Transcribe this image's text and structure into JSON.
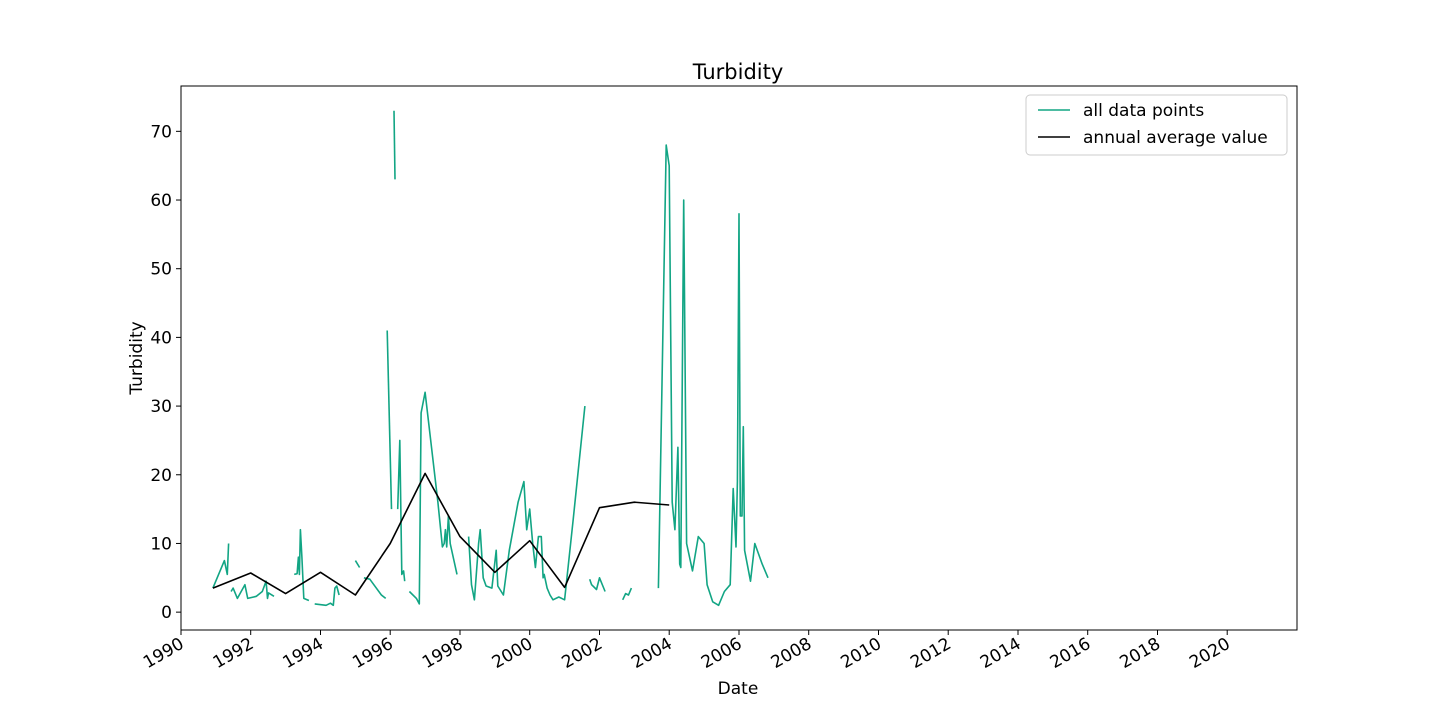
{
  "chart_data": {
    "type": "line",
    "title": "Turbidity",
    "xlabel": "Date",
    "ylabel": "Turbidity",
    "xlim": [
      "1990-01-01",
      "2022-01-01"
    ],
    "ylim": [
      -2.6,
      76.6
    ],
    "x_ticks": [
      "1990",
      "1992",
      "1994",
      "1996",
      "1998",
      "2000",
      "2002",
      "2004",
      "2006",
      "2008",
      "2010",
      "2012",
      "2014",
      "2016",
      "2018",
      "2020"
    ],
    "y_ticks": [
      0,
      10,
      20,
      30,
      40,
      50,
      60,
      70
    ],
    "grid": false,
    "legend_position": "top-right",
    "colors": {
      "all_data_points": "#12a584",
      "annual_average_value": "#000000"
    },
    "series": [
      {
        "name": "all data points",
        "segments": [
          [
            [
              "1990-12-01",
              3.5
            ],
            [
              "1991-04-01",
              7.5
            ],
            [
              "1991-05-01",
              5.5
            ],
            [
              "1991-05-15",
              10.0
            ]
          ],
          [
            [
              "1991-06-10",
              3.0
            ],
            [
              "1991-07-01",
              3.5
            ],
            [
              "1991-08-15",
              2.0
            ],
            [
              "1991-11-01",
              4.0
            ],
            [
              "1991-12-01",
              2.0
            ],
            [
              "1992-03-01",
              2.3
            ],
            [
              "1992-05-01",
              3.0
            ],
            [
              "1992-06-10",
              4.5
            ],
            [
              "1992-06-25",
              2.0
            ],
            [
              "1992-07-05",
              2.8
            ],
            [
              "1992-09-01",
              2.3
            ]
          ],
          [
            [
              "1993-04-01",
              5.5
            ],
            [
              "1993-05-01",
              5.6
            ],
            [
              "1993-05-15",
              8.0
            ],
            [
              "1993-05-25",
              5.5
            ],
            [
              "1993-06-05",
              12.0
            ],
            [
              "1993-06-20",
              8.0
            ],
            [
              "1993-07-10",
              2.0
            ],
            [
              "1993-09-01",
              1.7
            ]
          ],
          [
            [
              "1993-11-01",
              1.2
            ],
            [
              "1994-03-01",
              1.0
            ],
            [
              "1994-04-15",
              1.3
            ],
            [
              "1994-05-15",
              1.0
            ],
            [
              "1994-06-01",
              3.5
            ],
            [
              "1994-06-20",
              3.8
            ],
            [
              "1994-07-15",
              2.5
            ]
          ],
          [
            [
              "1995-01-01",
              7.5
            ],
            [
              "1995-02-15",
              6.5
            ]
          ],
          [
            [
              "1995-04-01",
              5.0
            ],
            [
              "1995-06-01",
              4.8
            ],
            [
              "1995-10-01",
              2.5
            ],
            [
              "1995-11-15",
              2.0
            ]
          ],
          [
            [
              "1995-12-01",
              41.0
            ],
            [
              "1996-01-15",
              15.0
            ]
          ],
          [
            [
              "1996-02-10",
              73.0
            ],
            [
              "1996-02-20",
              63.0
            ]
          ],
          [
            [
              "1996-03-20",
              15.0
            ],
            [
              "1996-04-10",
              25.0
            ],
            [
              "1996-05-01",
              5.5
            ],
            [
              "1996-05-20",
              6.0
            ],
            [
              "1996-06-01",
              4.5
            ]
          ],
          [
            [
              "1996-07-20",
              3.0
            ],
            [
              "1996-10-01",
              2.0
            ],
            [
              "1996-11-01",
              1.2
            ],
            [
              "1996-11-20",
              29.0
            ],
            [
              "1997-01-01",
              32.0
            ],
            [
              "1997-05-15",
              16.0
            ],
            [
              "1997-07-01",
              9.5
            ],
            [
              "1997-07-20",
              10.0
            ],
            [
              "1997-08-01",
              12.0
            ],
            [
              "1997-08-15",
              9.5
            ],
            [
              "1997-09-01",
              14.0
            ],
            [
              "1997-09-20",
              10.0
            ],
            [
              "1997-12-01",
              5.5
            ]
          ],
          [
            [
              "1998-04-01",
              11.0
            ],
            [
              "1998-05-01",
              4.0
            ],
            [
              "1998-06-01",
              1.8
            ],
            [
              "1998-07-15",
              10.0
            ],
            [
              "1998-08-01",
              12.0
            ],
            [
              "1998-09-01",
              5.0
            ],
            [
              "1998-10-01",
              3.8
            ],
            [
              "1998-12-01",
              3.5
            ],
            [
              "1999-01-15",
              9.0
            ],
            [
              "1999-02-01",
              3.8
            ],
            [
              "1999-04-01",
              2.5
            ],
            [
              "1999-06-01",
              9.0
            ],
            [
              "1999-09-01",
              16.0
            ],
            [
              "1999-11-01",
              19.0
            ],
            [
              "1999-12-01",
              12.0
            ],
            [
              "2000-01-01",
              15.0
            ],
            [
              "2000-02-01",
              10.0
            ],
            [
              "2000-03-01",
              6.5
            ],
            [
              "2000-04-01",
              11.0
            ],
            [
              "2000-05-01",
              11.0
            ],
            [
              "2000-05-20",
              5.0
            ],
            [
              "2000-06-01",
              5.5
            ],
            [
              "2000-07-01",
              3.5
            ],
            [
              "2000-08-01",
              2.5
            ],
            [
              "2000-09-01",
              1.8
            ],
            [
              "2000-11-01",
              2.2
            ],
            [
              "2001-01-01",
              1.8
            ],
            [
              "2001-04-01",
              13.5
            ],
            [
              "2001-08-01",
              30.0
            ]
          ],
          [
            [
              "2001-09-20",
              4.8
            ],
            [
              "2001-10-10",
              4.0
            ],
            [
              "2001-12-01",
              3.3
            ],
            [
              "2002-01-01",
              5.0
            ],
            [
              "2002-03-01",
              3.0
            ]
          ],
          [
            [
              "2002-09-01",
              1.8
            ],
            [
              "2002-10-01",
              2.7
            ],
            [
              "2002-11-01",
              2.5
            ],
            [
              "2002-12-01",
              3.5
            ]
          ],
          [
            [
              "2003-09-10",
              3.5
            ],
            [
              "2003-12-01",
              68.0
            ],
            [
              "2004-01-01",
              65.0
            ],
            [
              "2004-02-01",
              16.0
            ],
            [
              "2004-03-01",
              12.0
            ],
            [
              "2004-04-01",
              24.0
            ],
            [
              "2004-04-20",
              7.0
            ],
            [
              "2004-05-01",
              6.5
            ],
            [
              "2004-06-01",
              60.0
            ],
            [
              "2004-07-01",
              10.0
            ],
            [
              "2004-09-01",
              6.0
            ],
            [
              "2004-11-01",
              11.0
            ],
            [
              "2005-01-01",
              10.0
            ],
            [
              "2005-02-01",
              4.0
            ],
            [
              "2005-04-01",
              1.5
            ],
            [
              "2005-06-01",
              1.0
            ],
            [
              "2005-08-01",
              3.0
            ],
            [
              "2005-10-01",
              4.0
            ],
            [
              "2005-11-01",
              18.0
            ],
            [
              "2005-12-01",
              9.5
            ],
            [
              "2005-12-15",
              19.0
            ],
            [
              "2006-01-01",
              58.0
            ],
            [
              "2006-01-15",
              14.0
            ],
            [
              "2006-02-01",
              14.0
            ],
            [
              "2006-02-15",
              27.0
            ],
            [
              "2006-03-01",
              9.0
            ],
            [
              "2006-05-01",
              4.5
            ],
            [
              "2006-06-15",
              10.0
            ],
            [
              "2006-09-01",
              7.0
            ],
            [
              "2006-11-01",
              5.0
            ]
          ]
        ]
      },
      {
        "name": "annual average value",
        "points": [
          [
            "1990-12-01",
            3.5
          ],
          [
            "1992-01-01",
            5.7
          ],
          [
            "1993-01-01",
            2.7
          ],
          [
            "1994-01-01",
            5.8
          ],
          [
            "1995-01-01",
            2.5
          ],
          [
            "1996-01-01",
            10.0
          ],
          [
            "1997-01-01",
            20.2
          ],
          [
            "1998-01-01",
            11.0
          ],
          [
            "1999-01-01",
            5.8
          ],
          [
            "2000-01-01",
            10.4
          ],
          [
            "2001-01-01",
            3.6
          ],
          [
            "2002-01-01",
            15.2
          ],
          [
            "2003-01-01",
            16.0
          ],
          [
            "2004-01-01",
            15.6
          ]
        ]
      }
    ]
  }
}
